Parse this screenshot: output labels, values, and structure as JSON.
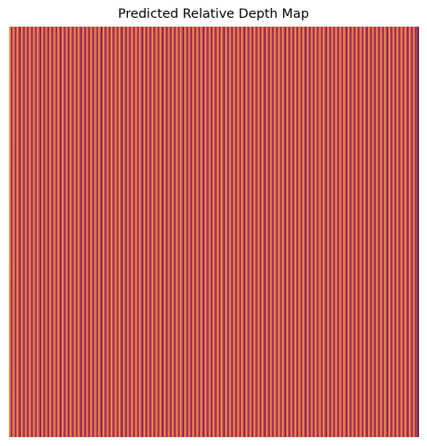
{
  "figure": {
    "title": "Predicted Relative Depth Map"
  },
  "image": {
    "semantic": "depth-map-heatmap",
    "colormap_colors": [
      "#5a1e7a",
      "#a53361",
      "#cf4f56",
      "#d9564a",
      "#f2a12f"
    ]
  }
}
